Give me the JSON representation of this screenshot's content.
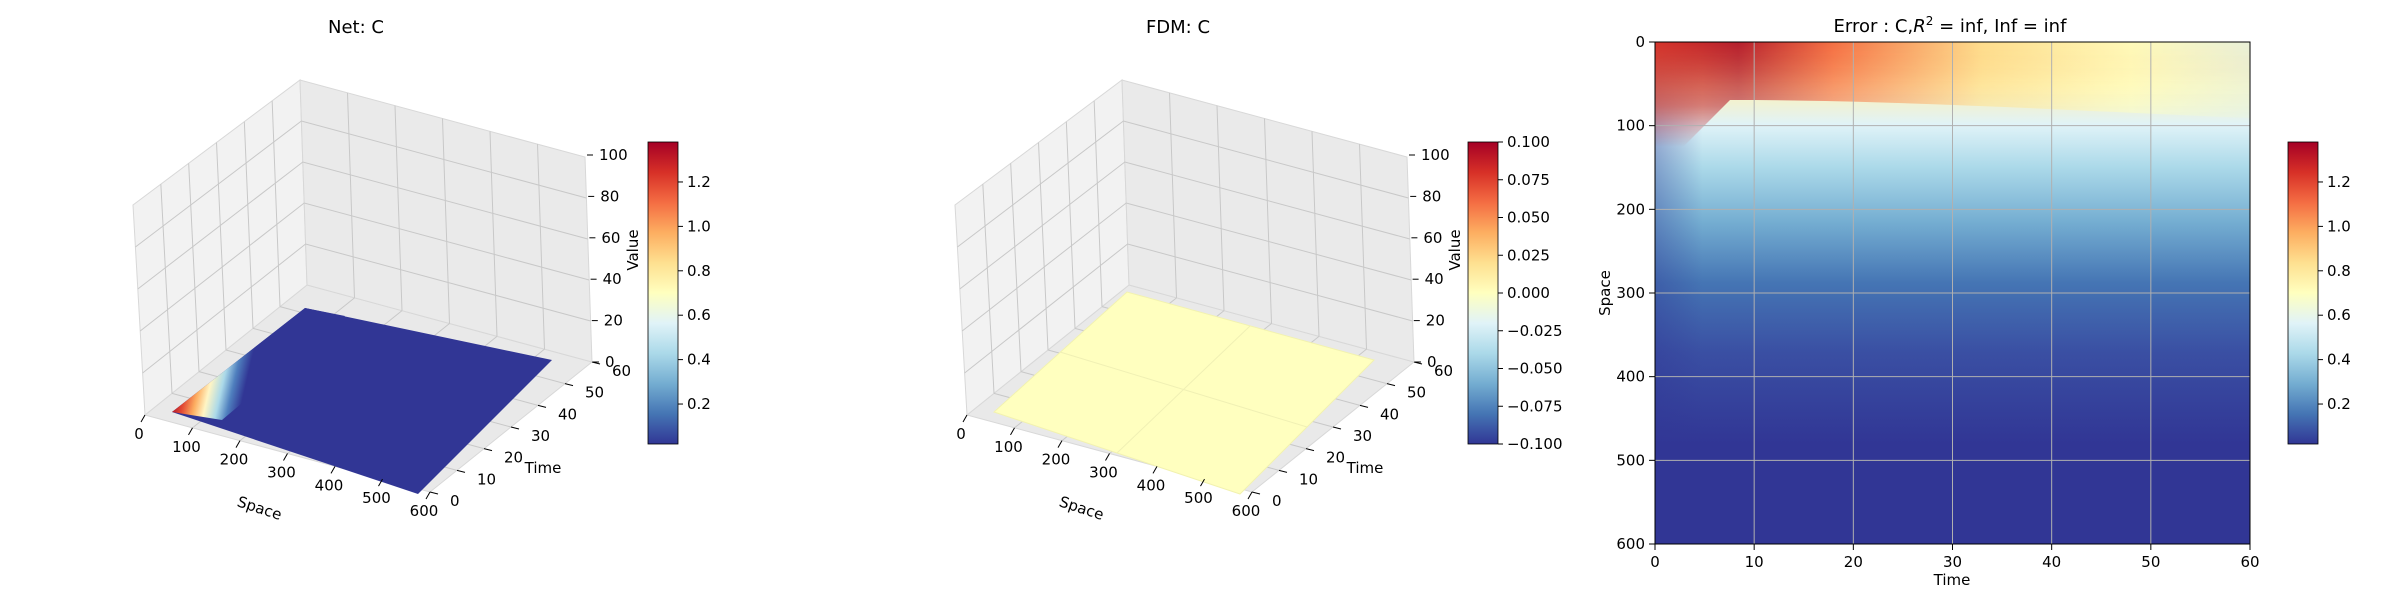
{
  "chart_data": [
    {
      "type": "surface3d",
      "title": "Net: C",
      "xlabel": "Space",
      "ylabel": "Time",
      "zlabel": "Value",
      "xlim": [
        0,
        600
      ],
      "ylim": [
        0,
        60
      ],
      "zlim": [
        0,
        100
      ],
      "xticks": [
        "0",
        "100",
        "200",
        "300",
        "400",
        "500",
        "600"
      ],
      "yticks": [
        "0",
        "10",
        "20",
        "30",
        "40",
        "50",
        "60"
      ],
      "zticks": [
        "0",
        "20",
        "40",
        "60",
        "80",
        "100"
      ],
      "colormap": "RdYlBu_r",
      "surface_note": "C peaks near 1.3 at small space values and decays toward ~0.05 for space > 200",
      "colorbar": {
        "min": 0.02,
        "max": 1.38,
        "ticks": [
          "0.2",
          "0.4",
          "0.6",
          "0.8",
          "1.0",
          "1.2"
        ]
      }
    },
    {
      "type": "surface3d",
      "title": "FDM: C",
      "xlabel": "Space",
      "ylabel": "Time",
      "zlabel": "Value",
      "xlim": [
        0,
        600
      ],
      "ylim": [
        0,
        60
      ],
      "zlim": [
        0,
        100
      ],
      "xticks": [
        "0",
        "100",
        "200",
        "300",
        "400",
        "500",
        "600"
      ],
      "yticks": [
        "0",
        "10",
        "20",
        "30",
        "40",
        "50",
        "60"
      ],
      "zticks": [
        "0",
        "20",
        "40",
        "60",
        "80",
        "100"
      ],
      "colormap": "RdYlBu_r",
      "surface_note": "constant zero surface",
      "colorbar": {
        "min": -0.1,
        "max": 0.1,
        "ticks": [
          "0.100",
          "0.075",
          "0.050",
          "0.025",
          "0.000",
          "−0.025",
          "−0.050",
          "−0.075",
          "−0.100"
        ]
      }
    },
    {
      "type": "heatmap",
      "title_prefix": "Error : C,",
      "title_r2": "R",
      "title_sup": "2",
      "title_suffix": " = inf, Inf = inf",
      "xlabel": "Time",
      "ylabel": "Space",
      "xlim": [
        0,
        60
      ],
      "ylim": [
        600,
        0
      ],
      "xticks": [
        "0",
        "10",
        "20",
        "30",
        "40",
        "50",
        "60"
      ],
      "yticks": [
        "0",
        "100",
        "200",
        "300",
        "400",
        "500",
        "600"
      ],
      "grid": true,
      "colormap": "RdYlBu_r",
      "colorbar": {
        "min": 0.02,
        "max": 1.38,
        "ticks": [
          "0.2",
          "0.4",
          "0.6",
          "0.8",
          "1.0",
          "1.2"
        ]
      }
    }
  ]
}
